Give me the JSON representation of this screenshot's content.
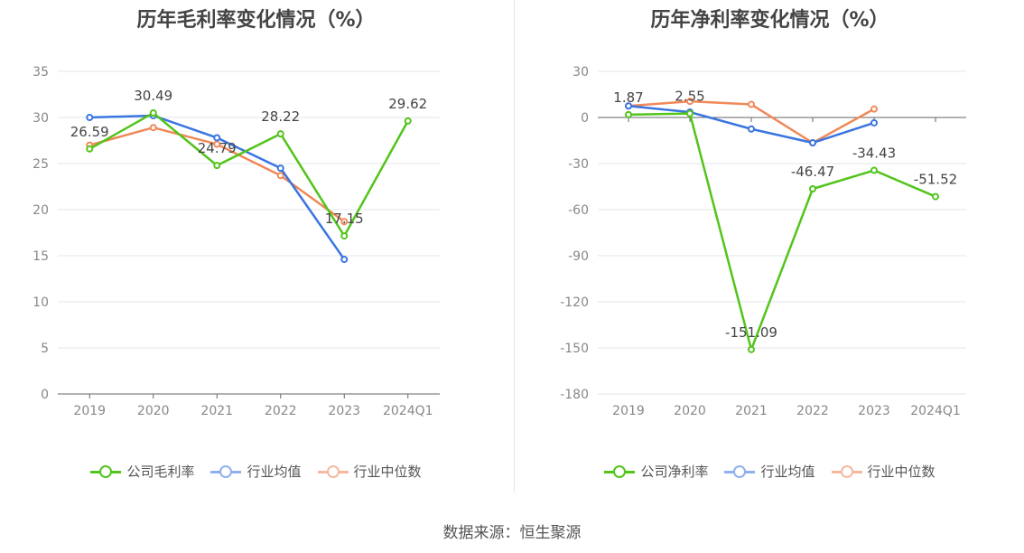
{
  "source_label": "数据来源：恒生聚源",
  "chart_data": [
    {
      "type": "line",
      "title": "历年毛利率变化情况（%）",
      "categories": [
        "2019",
        "2020",
        "2021",
        "2022",
        "2023",
        "2024Q1"
      ],
      "ylim": [
        0,
        35
      ],
      "yticks": [
        0,
        5,
        10,
        15,
        20,
        25,
        30,
        35
      ],
      "grid": true,
      "legend_position": "bottom",
      "series": [
        {
          "name": "公司毛利率",
          "color": "#52c41a",
          "values": [
            26.59,
            30.49,
            24.79,
            28.22,
            17.15,
            29.62
          ],
          "labels": [
            "26.59",
            "30.49",
            "24.79",
            "28.22",
            "17.15",
            "29.62"
          ]
        },
        {
          "name": "行业均值",
          "color": "#3a75e0",
          "values": [
            30.0,
            30.2,
            27.8,
            24.5,
            14.6,
            null
          ]
        },
        {
          "name": "行业中位数",
          "color": "#f08858",
          "values": [
            27.0,
            28.9,
            27.1,
            23.7,
            18.7,
            null
          ]
        }
      ]
    },
    {
      "type": "line",
      "title": "历年净利率变化情况（%）",
      "categories": [
        "2019",
        "2020",
        "2021",
        "2022",
        "2023",
        "2024Q1"
      ],
      "ylim": [
        -180,
        30
      ],
      "yticks": [
        -180,
        -150,
        -120,
        -90,
        -60,
        -30,
        0,
        30
      ],
      "grid": true,
      "legend_position": "bottom",
      "series": [
        {
          "name": "公司净利率",
          "color": "#52c41a",
          "values": [
            1.87,
            2.55,
            -151.09,
            -46.47,
            -34.43,
            -51.52
          ],
          "labels": [
            "1.87",
            "2.55",
            "-151.09",
            "-46.47",
            "-34.43",
            "-51.52"
          ]
        },
        {
          "name": "行业均值",
          "color": "#3a75e0",
          "values": [
            7.5,
            3.5,
            -7.5,
            -16.5,
            -3.5,
            null
          ]
        },
        {
          "name": "行业中位数",
          "color": "#f08858",
          "values": [
            7.5,
            10.5,
            8.5,
            -16.5,
            5.5,
            null
          ]
        }
      ]
    }
  ]
}
